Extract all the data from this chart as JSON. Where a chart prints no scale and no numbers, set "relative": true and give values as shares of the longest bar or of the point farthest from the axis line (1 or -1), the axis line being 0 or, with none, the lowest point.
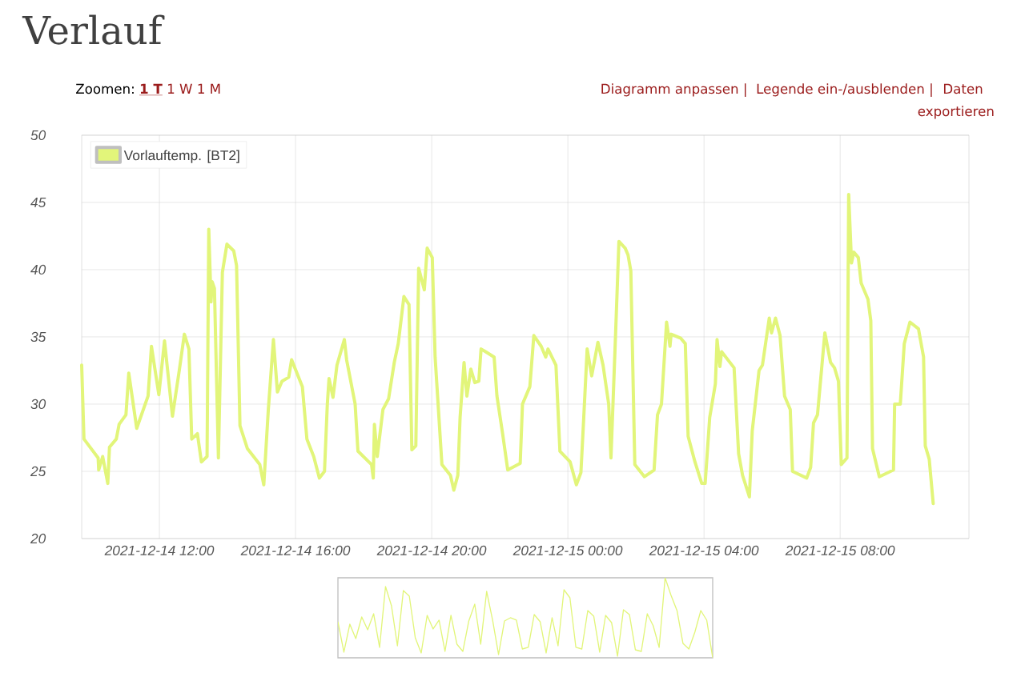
{
  "chart_data": [
    {
      "type": "line",
      "title": "Verlauf",
      "annotations": [
        "Zoomen:",
        "1 T",
        "1 W",
        "1 M",
        "Diagramm anpassen |",
        "Legende ein-/ausblenden |",
        "Daten exportieren"
      ],
      "xlim": [
        "2021-12-14T09:43",
        "2021-12-15T11:47"
      ],
      "xticks": [
        {
          "value": "2021-12-14T12:00",
          "label": "2021-12-14 12:00"
        },
        {
          "value": "2021-12-14T16:00",
          "label": "2021-12-14 16:00"
        },
        {
          "value": "2021-12-14T20:00",
          "label": "2021-12-14 20:00"
        },
        {
          "value": "2021-12-15T00:00",
          "label": "2021-12-15 00:00"
        },
        {
          "value": "2021-12-15T04:00",
          "label": "2021-12-15 04:00"
        },
        {
          "value": "2021-12-15T08:00",
          "label": "2021-12-15 08:00"
        }
      ],
      "ylim": [
        20,
        50
      ],
      "yticks": [
        20,
        25,
        30,
        35,
        40,
        45,
        50
      ],
      "grid": true,
      "legend": "top left",
      "marker": "none",
      "line_style": "solid",
      "x": [
        "2021-12-14T09:43",
        "2021-12-14T09:47",
        "2021-12-14T10:12",
        "2021-12-14T10:13",
        "2021-12-14T10:20",
        "2021-12-14T10:29",
        "2021-12-14T10:32",
        "2021-12-14T10:44",
        "2021-12-14T10:49",
        "2021-12-14T11:01",
        "2021-12-14T11:06",
        "2021-12-14T11:20",
        "2021-12-14T11:40",
        "2021-12-14T11:46",
        "2021-12-14T11:59",
        "2021-12-14T12:09",
        "2021-12-14T12:23",
        "2021-12-14T12:35",
        "2021-12-14T12:44",
        "2021-12-14T12:52",
        "2021-12-14T12:57",
        "2021-12-14T13:07",
        "2021-12-14T13:14",
        "2021-12-14T13:24",
        "2021-12-14T13:27",
        "2021-12-14T13:31",
        "2021-12-14T13:33",
        "2021-12-14T13:37",
        "2021-12-14T13:44",
        "2021-12-14T13:51",
        "2021-12-14T13:59",
        "2021-12-14T14:11",
        "2021-12-14T14:16",
        "2021-12-14T14:22",
        "2021-12-14T14:35",
        "2021-12-14T14:57",
        "2021-12-14T15:04",
        "2021-12-14T15:12",
        "2021-12-14T15:21",
        "2021-12-14T15:28",
        "2021-12-14T15:36",
        "2021-12-14T15:48",
        "2021-12-14T15:53",
        "2021-12-14T16:12",
        "2021-12-14T16:20",
        "2021-12-14T16:32",
        "2021-12-14T16:42",
        "2021-12-14T16:51",
        "2021-12-14T16:56",
        "2021-12-14T16:59",
        "2021-12-14T17:06",
        "2021-12-14T17:13",
        "2021-12-14T17:26",
        "2021-12-14T17:30",
        "2021-12-14T17:45",
        "2021-12-14T17:50",
        "2021-12-14T18:14",
        "2021-12-14T18:17",
        "2021-12-14T18:19",
        "2021-12-14T18:24",
        "2021-12-14T18:34",
        "2021-12-14T18:44",
        "2021-12-14T18:54",
        "2021-12-14T19:01",
        "2021-12-14T19:11",
        "2021-12-14T19:20",
        "2021-12-14T19:25",
        "2021-12-14T19:32",
        "2021-12-14T19:37",
        "2021-12-14T19:47",
        "2021-12-14T19:52",
        "2021-12-14T20:01",
        "2021-12-14T20:06",
        "2021-12-14T20:18",
        "2021-12-14T20:33",
        "2021-12-14T20:39",
        "2021-12-14T20:46",
        "2021-12-14T20:50",
        "2021-12-14T20:57",
        "2021-12-14T21:02",
        "2021-12-14T21:09",
        "2021-12-14T21:16",
        "2021-12-14T21:23",
        "2021-12-14T21:27",
        "2021-12-14T21:35",
        "2021-12-14T21:50",
        "2021-12-14T21:55",
        "2021-12-14T22:05",
        "2021-12-14T22:14",
        "2021-12-14T22:36",
        "2021-12-14T22:40",
        "2021-12-14T22:53",
        "2021-12-14T23:00",
        "2021-12-14T23:13",
        "2021-12-14T23:21",
        "2021-12-14T23:25",
        "2021-12-14T23:39",
        "2021-12-14T23:46",
        "2021-12-15T00:04",
        "2021-12-15T00:15",
        "2021-12-15T00:23",
        "2021-12-15T00:28",
        "2021-12-15T00:34",
        "2021-12-15T00:42",
        "2021-12-15T00:53",
        "2021-12-15T01:02",
        "2021-12-15T01:12",
        "2021-12-15T01:16",
        "2021-12-15T01:24",
        "2021-12-15T01:30",
        "2021-12-15T01:41",
        "2021-12-15T01:46",
        "2021-12-15T01:51",
        "2021-12-15T01:58",
        "2021-12-15T02:15",
        "2021-12-15T02:32",
        "2021-12-15T02:38",
        "2021-12-15T02:45",
        "2021-12-15T02:54",
        "2021-12-15T03:00",
        "2021-12-15T03:02",
        "2021-12-15T03:19",
        "2021-12-15T03:27",
        "2021-12-15T03:32",
        "2021-12-15T03:44",
        "2021-12-15T03:56",
        "2021-12-15T04:02",
        "2021-12-15T04:10",
        "2021-12-15T04:20",
        "2021-12-15T04:23",
        "2021-12-15T04:28",
        "2021-12-15T04:31",
        "2021-12-15T04:53",
        "2021-12-15T05:01",
        "2021-12-15T05:08",
        "2021-12-15T05:20",
        "2021-12-15T05:25",
        "2021-12-15T05:37",
        "2021-12-15T05:43",
        "2021-12-15T05:55",
        "2021-12-15T05:59",
        "2021-12-15T06:06",
        "2021-12-15T06:14",
        "2021-12-15T06:22",
        "2021-12-15T06:32",
        "2021-12-15T06:36",
        "2021-12-15T07:01",
        "2021-12-15T07:08",
        "2021-12-15T07:13",
        "2021-12-15T07:20",
        "2021-12-15T07:33",
        "2021-12-15T07:43",
        "2021-12-15T07:50",
        "2021-12-15T07:57",
        "2021-12-15T08:02",
        "2021-12-15T08:12",
        "2021-12-15T08:15",
        "2021-12-15T08:20",
        "2021-12-15T08:24",
        "2021-12-15T08:32",
        "2021-12-15T08:37",
        "2021-12-15T08:49",
        "2021-12-15T08:54",
        "2021-12-15T08:57",
        "2021-12-15T09:09",
        "2021-12-15T09:34",
        "2021-12-15T09:36",
        "2021-12-15T09:46",
        "2021-12-15T09:53",
        "2021-12-15T10:03",
        "2021-12-15T10:18",
        "2021-12-15T10:27",
        "2021-12-15T10:30",
        "2021-12-15T10:37",
        "2021-12-15T10:44"
      ],
      "series": [
        {
          "name": "Vorlauftemp. [BT2]",
          "color": "#e2f57a",
          "values": [
            32.9,
            27.4,
            26.0,
            25.1,
            26.1,
            24.1,
            26.8,
            27.4,
            28.5,
            29.2,
            32.3,
            28.2,
            30.6,
            34.3,
            30.7,
            34.7,
            29.1,
            32.5,
            35.2,
            34.1,
            27.4,
            27.8,
            25.7,
            26.1,
            43.0,
            37.6,
            39.1,
            38.6,
            26.0,
            39.8,
            41.9,
            41.4,
            40.3,
            28.4,
            26.7,
            25.5,
            24.0,
            29.6,
            34.8,
            30.9,
            31.7,
            32.0,
            33.3,
            31.3,
            27.4,
            26.1,
            24.5,
            25.0,
            30.0,
            31.9,
            30.5,
            32.9,
            34.8,
            33.3,
            30.0,
            26.5,
            25.5,
            24.5,
            28.5,
            26.1,
            29.6,
            30.4,
            33.1,
            34.5,
            38.0,
            37.4,
            26.6,
            26.9,
            40.1,
            38.5,
            41.6,
            40.9,
            33.5,
            25.5,
            24.7,
            23.6,
            24.7,
            29.0,
            33.1,
            30.6,
            32.6,
            31.6,
            31.7,
            34.1,
            33.9,
            33.5,
            30.6,
            27.8,
            25.1,
            25.6,
            30.0,
            31.3,
            35.1,
            34.3,
            33.5,
            34.1,
            32.9,
            26.5,
            25.7,
            24.0,
            24.9,
            29.0,
            34.1,
            32.1,
            34.6,
            32.9,
            30.0,
            26.0,
            35.1,
            42.1,
            41.6,
            41.1,
            39.9,
            25.5,
            24.6,
            25.1,
            29.2,
            30.0,
            36.1,
            34.3,
            35.2,
            34.9,
            34.5,
            27.6,
            25.7,
            24.1,
            24.1,
            29.0,
            31.5,
            34.8,
            32.8,
            33.9,
            32.7,
            26.3,
            24.7,
            23.1,
            28.0,
            32.5,
            32.9,
            36.4,
            35.3,
            36.4,
            35.1,
            30.6,
            29.6,
            25.0,
            24.5,
            25.3,
            28.6,
            29.2,
            35.3,
            33.1,
            32.7,
            31.7,
            25.5,
            26.0,
            45.6,
            40.5,
            41.3,
            40.9,
            39.0,
            37.8,
            36.2,
            26.7,
            24.6,
            25.1,
            30.0,
            30.0,
            34.5,
            36.1,
            35.6,
            33.5,
            26.9,
            25.9,
            22.6
          ]
        }
      ]
    },
    {
      "type": "line",
      "relative": true,
      "marker": "none",
      "categories": [
        null,
        null,
        null,
        null,
        null,
        null,
        null,
        null,
        null,
        null,
        null,
        null,
        null,
        null,
        null,
        null,
        null,
        null,
        null,
        null,
        null,
        null,
        null,
        null,
        null,
        null,
        null,
        null,
        null,
        null,
        null,
        null,
        null,
        null,
        null,
        null,
        null,
        null,
        null,
        null,
        null,
        null,
        null,
        null,
        null,
        null,
        null,
        null,
        null,
        null,
        null,
        null,
        null,
        null,
        null,
        null,
        null,
        null,
        null,
        null,
        null,
        null,
        null,
        null
      ],
      "series": [
        {
          "color": "#e2f57a",
          "values": [
            0.45,
            0.07,
            0.42,
            0.24,
            0.51,
            0.35,
            0.55,
            0.13,
            0.89,
            0.65,
            0.15,
            0.84,
            0.77,
            0.25,
            0.06,
            0.53,
            0.36,
            0.47,
            0.08,
            0.53,
            0.17,
            0.08,
            0.46,
            0.67,
            0.17,
            0.83,
            0.47,
            0.04,
            0.46,
            0.5,
            0.47,
            0.11,
            0.13,
            0.54,
            0.45,
            0.06,
            0.5,
            0.15,
            0.85,
            0.75,
            0.13,
            0.11,
            0.59,
            0.52,
            0.07,
            0.53,
            0.44,
            0.02,
            0.6,
            0.54,
            0.1,
            0.08,
            0.55,
            0.4,
            0.13,
            1,
            0.78,
            0.59,
            0.18,
            0.11,
            0.32,
            0.59,
            0.47,
            0
          ]
        }
      ]
    }
  ]
}
